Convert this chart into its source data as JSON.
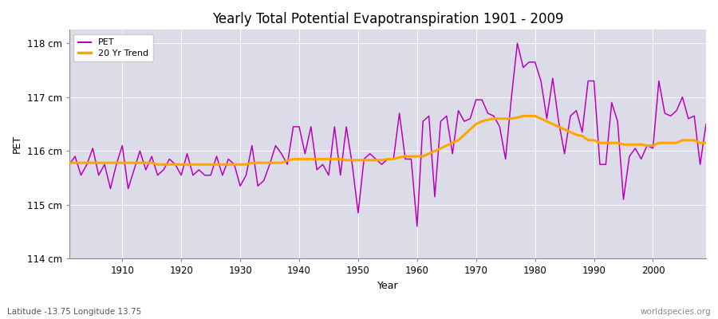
{
  "title": "Yearly Total Potential Evapotranspiration 1901 - 2009",
  "ylabel": "PET",
  "xlabel": "Year",
  "footnote_left": "Latitude -13.75 Longitude 13.75",
  "footnote_right": "worldspecies.org",
  "pet_color": "#bb00bb",
  "trend_color": "#ffa500",
  "background_color": "#dcdce8",
  "fig_background": "#ffffff",
  "ylim": [
    114.0,
    118.25
  ],
  "yticks": [
    114,
    115,
    116,
    117,
    118
  ],
  "ytick_labels": [
    "114 cm",
    "115 cm",
    "116 cm",
    "117 cm",
    "118 cm"
  ],
  "years": [
    1901,
    1902,
    1903,
    1904,
    1905,
    1906,
    1907,
    1908,
    1909,
    1910,
    1911,
    1912,
    1913,
    1914,
    1915,
    1916,
    1917,
    1918,
    1919,
    1920,
    1921,
    1922,
    1923,
    1924,
    1925,
    1926,
    1927,
    1928,
    1929,
    1930,
    1931,
    1932,
    1933,
    1934,
    1935,
    1936,
    1937,
    1938,
    1939,
    1940,
    1941,
    1942,
    1943,
    1944,
    1945,
    1946,
    1947,
    1948,
    1949,
    1950,
    1951,
    1952,
    1953,
    1954,
    1955,
    1956,
    1957,
    1958,
    1959,
    1960,
    1961,
    1962,
    1963,
    1964,
    1965,
    1966,
    1967,
    1968,
    1969,
    1970,
    1971,
    1972,
    1973,
    1974,
    1975,
    1976,
    1977,
    1978,
    1979,
    1980,
    1981,
    1982,
    1983,
    1984,
    1985,
    1986,
    1987,
    1988,
    1989,
    1990,
    1991,
    1992,
    1993,
    1994,
    1995,
    1996,
    1997,
    1998,
    1999,
    2000,
    2001,
    2002,
    2003,
    2004,
    2005,
    2006,
    2007,
    2008,
    2009
  ],
  "pet_values": [
    115.75,
    115.9,
    115.55,
    115.75,
    116.05,
    115.55,
    115.75,
    115.3,
    115.75,
    116.1,
    115.3,
    115.65,
    116.0,
    115.65,
    115.9,
    115.55,
    115.65,
    115.85,
    115.75,
    115.55,
    115.95,
    115.55,
    115.65,
    115.55,
    115.55,
    115.9,
    115.55,
    115.85,
    115.75,
    115.35,
    115.55,
    116.1,
    115.35,
    115.45,
    115.75,
    116.1,
    115.95,
    115.75,
    116.45,
    116.45,
    115.95,
    116.45,
    115.65,
    115.75,
    115.55,
    116.45,
    115.55,
    116.45,
    115.75,
    114.85,
    115.85,
    115.95,
    115.85,
    115.75,
    115.85,
    115.85,
    116.7,
    115.85,
    115.85,
    114.6,
    116.55,
    116.65,
    115.15,
    116.55,
    116.65,
    115.95,
    116.75,
    116.55,
    116.6,
    116.95,
    116.95,
    116.7,
    116.65,
    116.45,
    115.85,
    117.0,
    118.0,
    117.55,
    117.65,
    117.65,
    117.3,
    116.6,
    117.35,
    116.55,
    115.95,
    116.65,
    116.75,
    116.35,
    117.3,
    117.3,
    115.75,
    115.75,
    116.9,
    116.55,
    115.1,
    115.9,
    116.05,
    115.85,
    116.1,
    116.05,
    117.3,
    116.7,
    116.65,
    116.75,
    117.0,
    116.6,
    116.65,
    115.75,
    116.5
  ],
  "trend_years": [
    1901,
    1902,
    1903,
    1904,
    1905,
    1906,
    1907,
    1908,
    1909,
    1910,
    1911,
    1912,
    1913,
    1914,
    1915,
    1916,
    1917,
    1918,
    1919,
    1920,
    1921,
    1922,
    1923,
    1924,
    1925,
    1926,
    1927,
    1928,
    1929,
    1930,
    1931,
    1932,
    1933,
    1934,
    1935,
    1936,
    1937,
    1938,
    1939,
    1940,
    1941,
    1942,
    1943,
    1944,
    1945,
    1946,
    1947,
    1948,
    1949,
    1950,
    1951,
    1952,
    1953,
    1954,
    1955,
    1956,
    1957,
    1958,
    1959,
    1960,
    1961,
    1962,
    1963,
    1964,
    1965,
    1966,
    1967,
    1968,
    1969,
    1970,
    1971,
    1972,
    1973,
    1974,
    1975,
    1976,
    1977,
    1978,
    1979,
    1980,
    1981,
    1982,
    1983,
    1984,
    1985,
    1986,
    1987,
    1988,
    1989,
    1990,
    1991,
    1992,
    1993,
    1994,
    1995,
    1996,
    1997,
    1998,
    1999,
    2000,
    2001,
    2002,
    2003,
    2004,
    2005,
    2006,
    2007,
    2008,
    2009
  ],
  "trend_values": [
    115.78,
    115.78,
    115.78,
    115.78,
    115.78,
    115.78,
    115.78,
    115.78,
    115.78,
    115.78,
    115.78,
    115.78,
    115.78,
    115.78,
    115.78,
    115.75,
    115.75,
    115.75,
    115.75,
    115.75,
    115.75,
    115.75,
    115.75,
    115.75,
    115.75,
    115.75,
    115.75,
    115.75,
    115.75,
    115.75,
    115.75,
    115.78,
    115.78,
    115.78,
    115.78,
    115.78,
    115.78,
    115.82,
    115.85,
    115.85,
    115.85,
    115.85,
    115.85,
    115.85,
    115.85,
    115.85,
    115.85,
    115.83,
    115.83,
    115.83,
    115.83,
    115.83,
    115.83,
    115.83,
    115.85,
    115.85,
    115.88,
    115.9,
    115.9,
    115.9,
    115.9,
    115.95,
    116.0,
    116.05,
    116.1,
    116.15,
    116.2,
    116.3,
    116.4,
    116.5,
    116.55,
    116.58,
    116.6,
    116.6,
    116.6,
    116.6,
    116.62,
    116.65,
    116.65,
    116.65,
    116.6,
    116.55,
    116.5,
    116.45,
    116.4,
    116.35,
    116.3,
    116.28,
    116.2,
    116.2,
    116.15,
    116.15,
    116.15,
    116.15,
    116.12,
    116.12,
    116.12,
    116.12,
    116.1,
    116.1,
    116.15,
    116.15,
    116.15,
    116.15,
    116.2,
    116.2,
    116.2,
    116.15,
    116.15
  ]
}
